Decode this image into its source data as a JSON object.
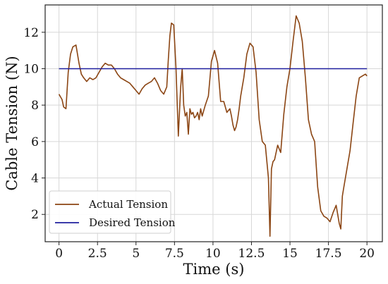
{
  "chart_data": {
    "type": "line",
    "title": "",
    "xlabel": "Time (s)",
    "ylabel": "Cable Tension (N)",
    "xlim": [
      -0.9,
      21
    ],
    "ylim": [
      0.5,
      13.5
    ],
    "xticks": [
      0,
      2.5,
      5,
      7.5,
      10,
      12.5,
      15,
      17.5,
      20
    ],
    "xtick_labels": [
      "0",
      "2.5",
      "5",
      "7.5",
      "10",
      "12.5",
      "15",
      "17.5",
      "20"
    ],
    "yticks": [
      2,
      4,
      6,
      8,
      10,
      12
    ],
    "ytick_labels": [
      "2",
      "4",
      "6",
      "8",
      "10",
      "12"
    ],
    "grid": true,
    "legend_position": "lower-left",
    "series": [
      {
        "name": "Actual Tension",
        "color": "#8b4513",
        "x": [
          0,
          0.2,
          0.3,
          0.45,
          0.6,
          0.75,
          0.9,
          1.1,
          1.3,
          1.45,
          1.6,
          1.8,
          2.0,
          2.2,
          2.4,
          2.6,
          2.8,
          3.0,
          3.2,
          3.4,
          3.6,
          3.8,
          4.0,
          4.2,
          4.4,
          4.6,
          4.8,
          5.0,
          5.2,
          5.4,
          5.6,
          5.8,
          6.0,
          6.2,
          6.4,
          6.6,
          6.8,
          7.0,
          7.1,
          7.2,
          7.3,
          7.45,
          7.6,
          7.75,
          7.9,
          8.0,
          8.1,
          8.2,
          8.3,
          8.4,
          8.5,
          8.6,
          8.7,
          8.8,
          8.9,
          9.0,
          9.1,
          9.2,
          9.3,
          9.5,
          9.7,
          9.9,
          10.1,
          10.3,
          10.5,
          10.7,
          10.9,
          11.1,
          11.2,
          11.3,
          11.4,
          11.5,
          11.6,
          11.7,
          11.8,
          12.0,
          12.2,
          12.4,
          12.6,
          12.8,
          13.0,
          13.2,
          13.4,
          13.6,
          13.7,
          13.8,
          13.9,
          14.0,
          14.2,
          14.4,
          14.6,
          14.8,
          15.0,
          15.2,
          15.4,
          15.6,
          15.8,
          16.0,
          16.2,
          16.4,
          16.6,
          16.8,
          17.0,
          17.2,
          17.4,
          17.6,
          17.8,
          18.0,
          18.2,
          18.3,
          18.4,
          18.5,
          18.7,
          18.9,
          19.1,
          19.3,
          19.5,
          19.7,
          19.9,
          20.0
        ],
        "y": [
          8.6,
          8.3,
          7.9,
          7.8,
          9.8,
          10.8,
          11.2,
          11.3,
          10.3,
          9.7,
          9.5,
          9.3,
          9.5,
          9.4,
          9.5,
          9.8,
          10.1,
          10.3,
          10.2,
          10.2,
          10.0,
          9.7,
          9.5,
          9.4,
          9.3,
          9.2,
          9.0,
          8.8,
          8.6,
          8.9,
          9.1,
          9.2,
          9.3,
          9.5,
          9.2,
          8.8,
          8.6,
          9.0,
          10.5,
          11.8,
          12.5,
          12.4,
          10.0,
          6.3,
          9.0,
          10.0,
          8.0,
          7.4,
          7.6,
          6.4,
          7.8,
          7.5,
          7.6,
          7.3,
          7.4,
          7.6,
          7.2,
          7.8,
          7.4,
          8.0,
          8.5,
          10.4,
          11.0,
          10.3,
          8.2,
          8.2,
          7.6,
          7.8,
          7.4,
          6.9,
          6.6,
          6.8,
          7.2,
          7.8,
          8.5,
          9.5,
          10.8,
          11.4,
          11.2,
          9.8,
          7.2,
          6.0,
          5.8,
          4.0,
          0.8,
          4.5,
          4.9,
          5.0,
          5.8,
          5.4,
          7.5,
          9.0,
          10.0,
          11.5,
          12.9,
          12.5,
          11.5,
          9.5,
          7.2,
          6.4,
          6.0,
          3.5,
          2.2,
          1.9,
          1.8,
          1.6,
          2.1,
          2.5,
          1.5,
          1.2,
          3.0,
          3.5,
          4.5,
          5.5,
          7.0,
          8.5,
          9.5,
          9.6,
          9.7,
          9.6
        ]
      },
      {
        "name": "Desired Tension",
        "color": "#1f1f9e",
        "x": [
          0,
          20
        ],
        "y": [
          10,
          10
        ]
      }
    ]
  }
}
